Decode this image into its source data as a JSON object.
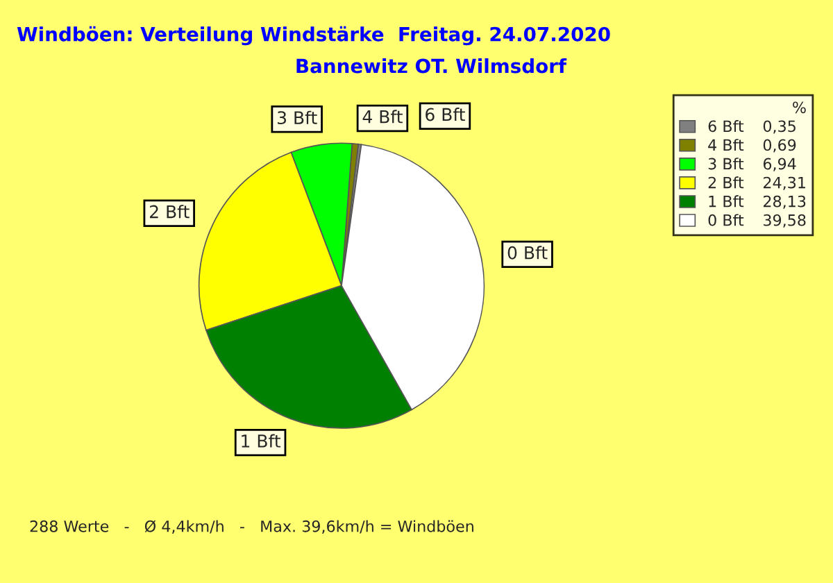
{
  "chart_data": {
    "type": "pie",
    "title": "Windböen: Verteilung Windstärke  Freitag. 24.07.2020",
    "subtitle": "Bannewitz OT. Wilmsdorf",
    "categories": [
      "6 Bft",
      "4 Bft",
      "3 Bft",
      "2 Bft",
      "1 Bft",
      "0 Bft"
    ],
    "values": [
      0.35,
      0.69,
      6.94,
      24.31,
      28.13,
      39.58
    ],
    "value_labels": [
      "0,35",
      "0,69",
      "6,94",
      "24,31",
      "28,13",
      "39,58"
    ],
    "colors": [
      "#808080",
      "#808000",
      "#00ff00",
      "#ffff00",
      "#008000",
      "#ffffff"
    ],
    "legend_title": "%",
    "legend": "top right",
    "annotations": [
      "288 Werte   -   Ø 4,4km/h   -   Max. 39,6km/h = Windböen"
    ]
  }
}
